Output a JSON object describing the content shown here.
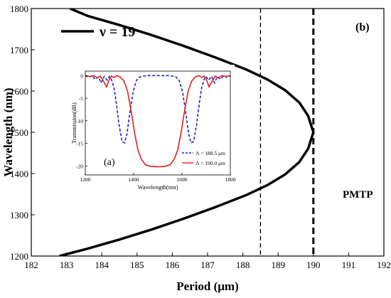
{
  "chart_data": [
    {
      "type": "line",
      "panel_label": "(b)",
      "xlabel": "Period (μm)",
      "ylabel": "Wavelength (nm)",
      "xlim": [
        182,
        192
      ],
      "ylim": [
        1200,
        1800
      ],
      "x_ticks": [
        182,
        183,
        184,
        185,
        186,
        187,
        188,
        189,
        190,
        191,
        192
      ],
      "y_ticks": [
        1200,
        1300,
        1400,
        1500,
        1600,
        1700,
        1800
      ],
      "legend": {
        "position": "top-left",
        "entries": [
          "ν = 19"
        ]
      },
      "series": [
        {
          "name": "ν = 19",
          "color": "#000000",
          "points": [
            [
              182.8,
              1200
            ],
            [
              183.6,
              1218
            ],
            [
              184.5,
              1240
            ],
            [
              185.4,
              1264
            ],
            [
              186.3,
              1290
            ],
            [
              187.2,
              1318
            ],
            [
              188.1,
              1348
            ],
            [
              188.7,
              1372
            ],
            [
              189.2,
              1398
            ],
            [
              189.6,
              1428
            ],
            [
              189.85,
              1460
            ],
            [
              190.0,
              1500
            ],
            [
              189.85,
              1540
            ],
            [
              189.6,
              1572
            ],
            [
              189.2,
              1602
            ],
            [
              188.7,
              1628
            ],
            [
              188.1,
              1652
            ],
            [
              187.2,
              1682
            ],
            [
              186.3,
              1710
            ],
            [
              185.4,
              1736
            ],
            [
              184.5,
              1760
            ],
            [
              183.6,
              1782
            ],
            [
              183.1,
              1800
            ]
          ]
        }
      ],
      "vertical_lines": [
        {
          "x": 188.5,
          "style": "dashed-thin",
          "color": "#000000"
        },
        {
          "x": 190.0,
          "style": "dashed-thick",
          "color": "#000000"
        }
      ],
      "annotations": [
        {
          "text": "PMTP",
          "x": 190.4,
          "y": 1470
        }
      ]
    },
    {
      "type": "line",
      "panel_label": "(a)",
      "xlabel": "Wavelength(nm)",
      "ylabel": "Transmission(dB)",
      "xlim": [
        1200,
        1800
      ],
      "ylim": [
        -22,
        1
      ],
      "x_ticks": [
        1200,
        1400,
        1600,
        1800
      ],
      "y_ticks": [
        0,
        -5,
        -10,
        -15,
        -20
      ],
      "legend": {
        "position": "bottom-right"
      },
      "series": [
        {
          "name": "Λ = 188.5 μm",
          "color": "#1f1fbf",
          "style": "dashed",
          "points": [
            [
              1200,
              0
            ],
            [
              1215,
              -0.4
            ],
            [
              1228,
              0
            ],
            [
              1240,
              -0.8
            ],
            [
              1255,
              -0.3
            ],
            [
              1265,
              -1.6
            ],
            [
              1278,
              -0.2
            ],
            [
              1290,
              -1.0
            ],
            [
              1300,
              -0.2
            ],
            [
              1308,
              -0.8
            ],
            [
              1318,
              -2.5
            ],
            [
              1328,
              -6
            ],
            [
              1340,
              -11
            ],
            [
              1352,
              -14.6
            ],
            [
              1362,
              -14.9
            ],
            [
              1372,
              -13
            ],
            [
              1385,
              -8
            ],
            [
              1398,
              -3.5
            ],
            [
              1412,
              -1
            ],
            [
              1425,
              -0.3
            ],
            [
              1440,
              -0.1
            ],
            [
              1460,
              0
            ],
            [
              1500,
              0
            ],
            [
              1540,
              0
            ],
            [
              1560,
              -0.1
            ],
            [
              1575,
              -0.3
            ],
            [
              1588,
              -1
            ],
            [
              1602,
              -3.5
            ],
            [
              1615,
              -8
            ],
            [
              1628,
              -13
            ],
            [
              1638,
              -14.9
            ],
            [
              1648,
              -14.6
            ],
            [
              1660,
              -11
            ],
            [
              1672,
              -6
            ],
            [
              1682,
              -2.5
            ],
            [
              1692,
              -0.8
            ],
            [
              1700,
              -0.2
            ],
            [
              1710,
              -1.0
            ],
            [
              1722,
              -0.2
            ],
            [
              1735,
              -1.6
            ],
            [
              1745,
              -0.3
            ],
            [
              1760,
              -0.8
            ],
            [
              1772,
              0
            ],
            [
              1785,
              -0.4
            ],
            [
              1800,
              0
            ]
          ]
        },
        {
          "name": "Λ = 190.0 μm",
          "color": "#e02020",
          "style": "solid",
          "points": [
            [
              1200,
              0
            ],
            [
              1220,
              -0.2
            ],
            [
              1235,
              0
            ],
            [
              1250,
              -0.5
            ],
            [
              1262,
              -0.1
            ],
            [
              1275,
              -1.2
            ],
            [
              1288,
              -2.5
            ],
            [
              1298,
              -1.0
            ],
            [
              1308,
              -0.1
            ],
            [
              1318,
              -0.4
            ],
            [
              1330,
              0
            ],
            [
              1345,
              -0.3
            ],
            [
              1360,
              -1.2
            ],
            [
              1375,
              -3.5
            ],
            [
              1390,
              -8
            ],
            [
              1405,
              -13
            ],
            [
              1418,
              -16.5
            ],
            [
              1432,
              -18.5
            ],
            [
              1448,
              -19.7
            ],
            [
              1470,
              -20.1
            ],
            [
              1500,
              -20.2
            ],
            [
              1530,
              -20.1
            ],
            [
              1552,
              -19.7
            ],
            [
              1568,
              -18.5
            ],
            [
              1582,
              -16.5
            ],
            [
              1595,
              -13
            ],
            [
              1610,
              -8
            ],
            [
              1625,
              -3.5
            ],
            [
              1640,
              -1.2
            ],
            [
              1655,
              -0.3
            ],
            [
              1670,
              0
            ],
            [
              1682,
              -0.4
            ],
            [
              1692,
              -0.1
            ],
            [
              1702,
              -1.0
            ],
            [
              1712,
              -2.5
            ],
            [
              1725,
              -1.2
            ],
            [
              1738,
              -0.1
            ],
            [
              1750,
              -0.5
            ],
            [
              1765,
              0
            ],
            [
              1780,
              -0.2
            ],
            [
              1800,
              0
            ]
          ]
        }
      ]
    }
  ]
}
